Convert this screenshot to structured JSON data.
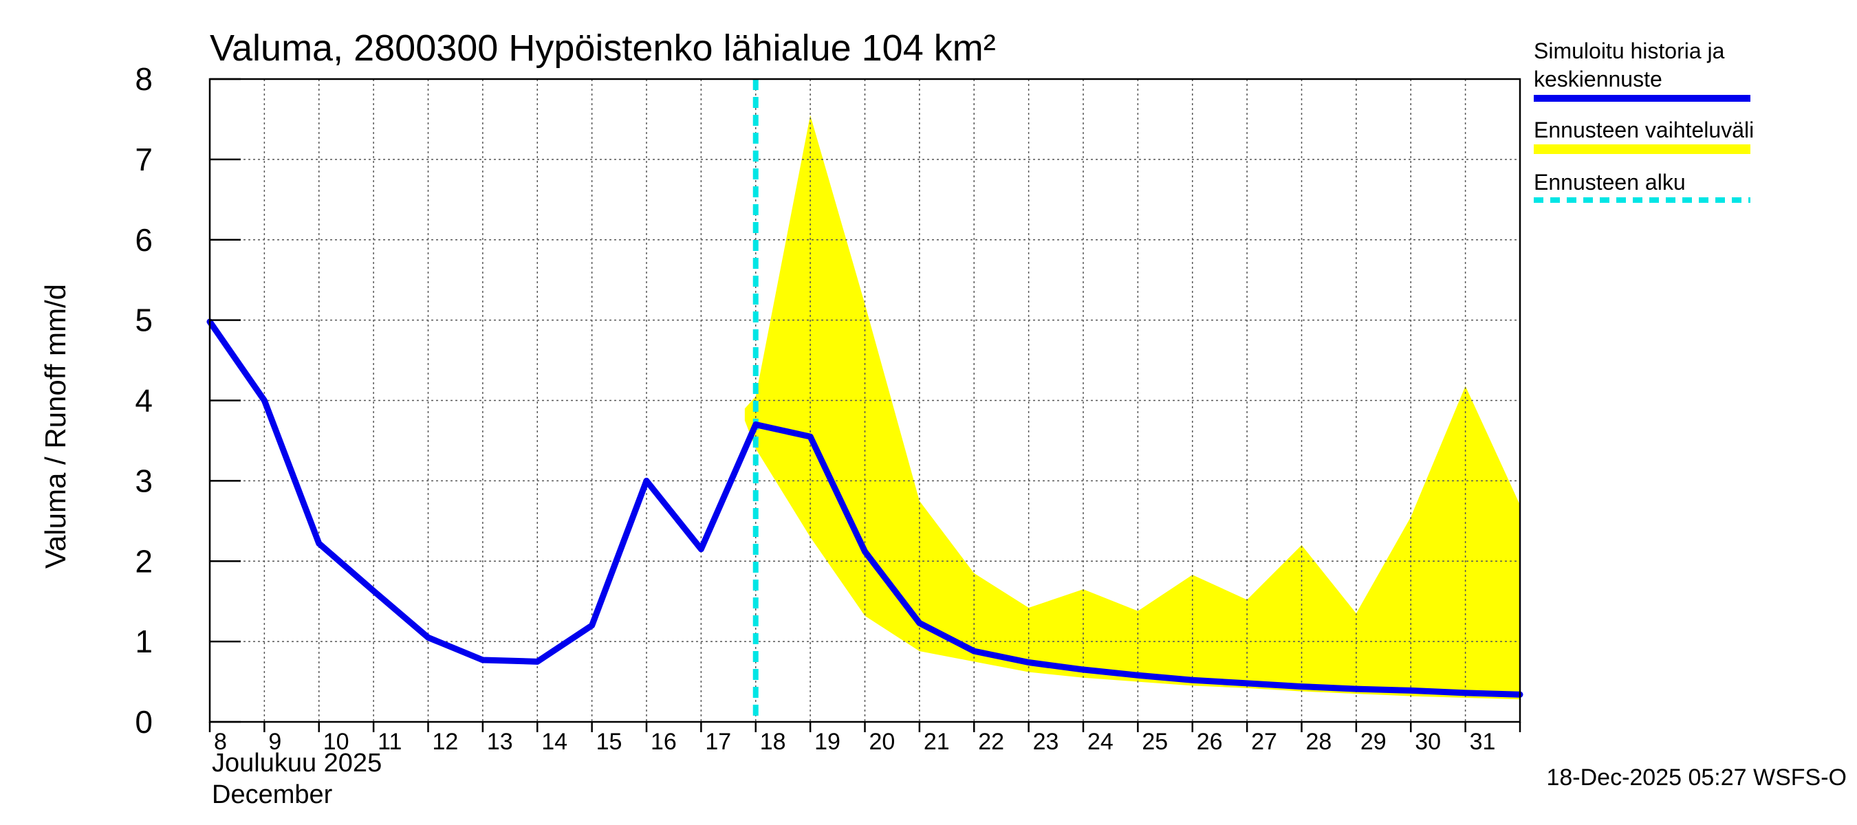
{
  "chart_data": {
    "type": "line",
    "title": "Valuma, 2800300 Hypöistenko lähialue 104 km²",
    "ylabel": "Valuma / Runoff    mm/d",
    "ylim": [
      0,
      8
    ],
    "yticks": [
      "0",
      "1",
      "2",
      "3",
      "4",
      "5",
      "6",
      "7",
      "8"
    ],
    "xlim": [
      8,
      32
    ],
    "x_tick_labels": [
      "8",
      "9",
      "10",
      "11",
      "12",
      "13",
      "14",
      "15",
      "16",
      "17",
      "18",
      "19",
      "20",
      "21",
      "22",
      "23",
      "24",
      "25",
      "26",
      "27",
      "28",
      "29",
      "30",
      "31"
    ],
    "month_label_fi": "Joulukuu  2025",
    "month_label_en": "December",
    "forecast_start_x": 18.0,
    "series": [
      {
        "name": "Simuloitu historia ja keskiennuste",
        "color": "#0000ee",
        "x": [
          8,
          9,
          10,
          11,
          12,
          13,
          14,
          15,
          16,
          17,
          18,
          19,
          20,
          21,
          22,
          23,
          24,
          25,
          26,
          27,
          28,
          29,
          30,
          31,
          32
        ],
        "values": [
          4.98,
          4.0,
          2.22,
          1.63,
          1.05,
          0.77,
          0.75,
          1.2,
          3.0,
          2.15,
          3.7,
          3.55,
          2.12,
          1.23,
          0.88,
          0.74,
          0.65,
          0.58,
          0.52,
          0.48,
          0.44,
          0.41,
          0.39,
          0.36,
          0.34
        ]
      }
    ],
    "band": {
      "name": "Ennusteen vaihteluväli",
      "color": "#ffff00",
      "x": [
        17.8,
        18,
        19,
        20,
        21,
        22,
        23,
        24,
        25,
        26,
        27,
        28,
        29,
        30,
        31,
        32
      ],
      "upper": [
        3.9,
        4.05,
        7.55,
        5.2,
        2.75,
        1.85,
        1.42,
        1.65,
        1.38,
        1.83,
        1.52,
        2.2,
        1.35,
        2.55,
        4.18,
        2.7
      ],
      "lower": [
        3.75,
        3.4,
        2.3,
        1.32,
        0.88,
        0.75,
        0.62,
        0.55,
        0.5,
        0.45,
        0.42,
        0.38,
        0.35,
        0.32,
        0.3,
        0.28
      ]
    },
    "legend": [
      {
        "label_line1": "Simuloitu historia ja",
        "label_line2": "keskiennuste",
        "style": "solid",
        "color": "#0000ee"
      },
      {
        "label_line1": "Ennusteen vaihteluväli",
        "label_line2": "",
        "style": "solid",
        "color": "#ffff00"
      },
      {
        "label_line1": "Ennusteen alku",
        "label_line2": "",
        "style": "dashed",
        "color": "#00e5e5"
      }
    ],
    "footer": "18-Dec-2025 05:27 WSFS-O",
    "forecast_line_color": "#00e5e5",
    "grid": true
  }
}
